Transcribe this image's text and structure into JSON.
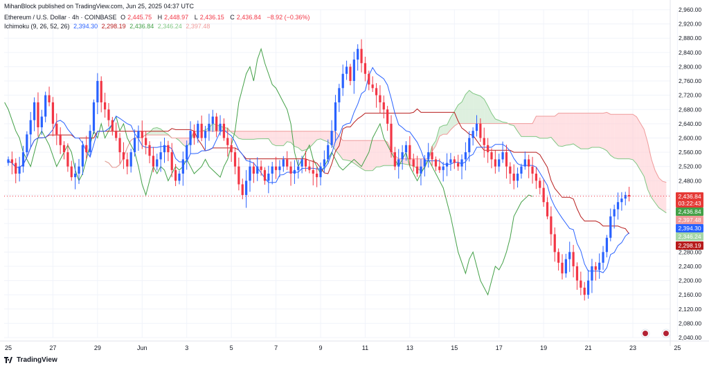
{
  "header": {
    "publisher": "MihanBlock published on TradingView.com, Jun 25, 2025 04:37 UTC",
    "symbol": "Ethereum / U.S. Dollar · 4h · COINBASE",
    "o_label": "O",
    "o": "2,445.75",
    "h_label": "H",
    "h": "2,448.97",
    "l_label": "L",
    "l": "2,436.15",
    "c_label": "C",
    "c": "2,436.84",
    "change": "−8.92 (−0.36%)",
    "indicator": "Ichimoku (9, 26, 52, 26)",
    "ind_v1": "2,394.30",
    "ind_v2": "2,298.19",
    "ind_v3": "2,436.84",
    "ind_v4": "2,346.24",
    "ind_v5": "2,397.48"
  },
  "footer": {
    "brand": "TradingView"
  },
  "price_tags": [
    {
      "label": "2,436.84",
      "color": "#e53935",
      "value": 2436.84,
      "extra": "03:22:43"
    },
    {
      "label": "2,436.84",
      "color": "#43a047",
      "value": 2436.84
    },
    {
      "label": "2,397.48",
      "color": "#ef9a9a",
      "value": 2397.48
    },
    {
      "label": "2,394.30",
      "color": "#2962ff",
      "value": 2394.3
    },
    {
      "label": "2,346.24",
      "color": "#a5d6a7",
      "value": 2346.24
    },
    {
      "label": "2,298.19",
      "color": "#b71c1c",
      "value": 2298.19
    }
  ],
  "colors": {
    "up": "#2962ff",
    "down": "#f23645",
    "tenkan": "#2962ff",
    "kijun": "#b71c1c",
    "chikou": "#43a047",
    "cloud_bull": "#c8e6c9",
    "cloud_bear": "#ffcdd2"
  },
  "chart_data": {
    "type": "candlestick",
    "title": "Ethereum / U.S. Dollar · 4h · COINBASE",
    "ylim": [
      2040,
      2960
    ],
    "y_ticks": [
      2040,
      2080,
      2120,
      2160,
      2200,
      2240,
      2280,
      2320,
      2360,
      2400,
      2440,
      2480,
      2520,
      2560,
      2600,
      2640,
      2680,
      2720,
      2760,
      2800,
      2840,
      2880,
      2920,
      2960
    ],
    "y_tick_labels": [
      "2,040.00",
      "2,080.00",
      "2,120.00",
      "2,160.00",
      "2,200.00",
      "2,240.00",
      "2,280.00",
      "2,320.00",
      "2,360.00",
      "2,400.00",
      "2,440.00",
      "2,480.00",
      "2,520.00",
      "2,560.00",
      "2,600.00",
      "2,640.00",
      "2,680.00",
      "2,720.00",
      "2,760.00",
      "2,800.00",
      "2,840.00",
      "2,880.00",
      "2,920.00",
      "2,960.00"
    ],
    "x_labels": [
      "25",
      "27",
      "29",
      "Jun",
      "3",
      "5",
      "7",
      "9",
      "11",
      "13",
      "15",
      "17",
      "19",
      "21",
      "23",
      "25"
    ],
    "x_label_bar_index": [
      0,
      12,
      24,
      36,
      48,
      60,
      72,
      84,
      96,
      108,
      120,
      132,
      144,
      156,
      168,
      180
    ],
    "bar_spacing_note": "4h candles, 6 per day",
    "close_path": [
      2540,
      2530,
      2500,
      2520,
      2560,
      2610,
      2650,
      2700,
      2630,
      2660,
      2720,
      2700,
      2640,
      2610,
      2580,
      2560,
      2520,
      2490,
      2500,
      2520,
      2580,
      2560,
      2620,
      2700,
      2760,
      2700,
      2680,
      2650,
      2620,
      2600,
      2560,
      2540,
      2520,
      2560,
      2600,
      2620,
      2600,
      2580,
      2550,
      2520,
      2540,
      2560,
      2580,
      2560,
      2510,
      2480,
      2500,
      2540,
      2580,
      2620,
      2600,
      2640,
      2600,
      2620,
      2640,
      2660,
      2620,
      2640,
      2600,
      2580,
      2560,
      2520,
      2470,
      2440,
      2480,
      2520,
      2500,
      2520,
      2510,
      2480,
      2500,
      2520,
      2510,
      2520,
      2540,
      2520,
      2500,
      2510,
      2520,
      2540,
      2520,
      2510,
      2500,
      2490,
      2520,
      2540,
      2580,
      2620,
      2700,
      2740,
      2780,
      2800,
      2760,
      2820,
      2850,
      2810,
      2780,
      2750,
      2740,
      2720,
      2700,
      2680,
      2640,
      2560,
      2520,
      2540,
      2560,
      2580,
      2540,
      2520,
      2500,
      2520,
      2540,
      2560,
      2540,
      2520,
      2510,
      2520,
      2530,
      2540,
      2530,
      2520,
      2540,
      2560,
      2600,
      2620,
      2640,
      2600,
      2580,
      2560,
      2540,
      2520,
      2540,
      2560,
      2520,
      2500,
      2480,
      2500,
      2520,
      2540,
      2520,
      2500,
      2480,
      2460,
      2420,
      2380,
      2330,
      2280,
      2250,
      2220,
      2260,
      2280,
      2240,
      2200,
      2180,
      2160,
      2200,
      2240,
      2230,
      2250,
      2280,
      2320,
      2380,
      2400,
      2420,
      2430,
      2440,
      2436
    ],
    "last": {
      "open": 2445.75,
      "high": 2448.97,
      "low": 2436.15,
      "close": 2436.84,
      "change": -8.92,
      "change_pct": -0.36
    },
    "ichimoku": {
      "tenkan": 2394.3,
      "kijun": 2298.19,
      "chikou": 2436.84,
      "senkou_a": 2346.24,
      "senkou_b": 2397.48
    }
  }
}
